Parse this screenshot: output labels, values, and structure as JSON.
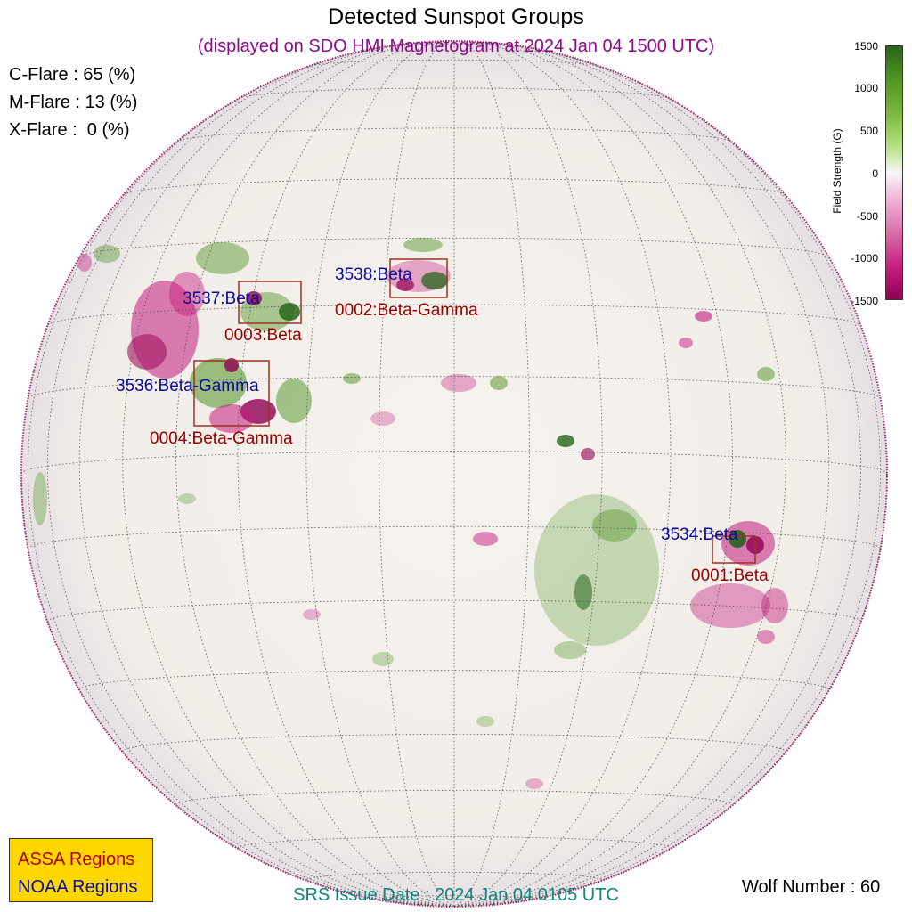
{
  "title": "Detected Sunspot Groups",
  "subtitle": "(displayed on SDO HMI Magnetogram at 2024 Jan 04 1500 UTC)",
  "flares": {
    "c": "C-Flare : 65 (%)",
    "m": "M-Flare : 13 (%)",
    "x": "X-Flare :  0 (%)"
  },
  "colorbar": {
    "label": "Field Strength (G)",
    "ticks": [
      "1500",
      "1000",
      "500",
      "0",
      "-500",
      "-1000",
      "-1500"
    ],
    "colors": {
      "positive": "#4d9221",
      "negative": "#c51b7d",
      "neutral": "#f7f7f7"
    }
  },
  "regions": {
    "noaa": [
      "3538:Beta",
      "3537:Beta",
      "3536:Beta-Gamma",
      "3534:Beta"
    ],
    "assa": [
      "0002:Beta-Gamma",
      "0003:Beta",
      "0004:Beta-Gamma",
      "0001:Beta"
    ]
  },
  "legend": {
    "assa": "ASSA Regions",
    "noaa": "NOAA Regions"
  },
  "footer": {
    "srs": "SRS Issue Date : 2024 Jan 04 0105 UTC",
    "wolf": "Wolf Number : 60"
  }
}
